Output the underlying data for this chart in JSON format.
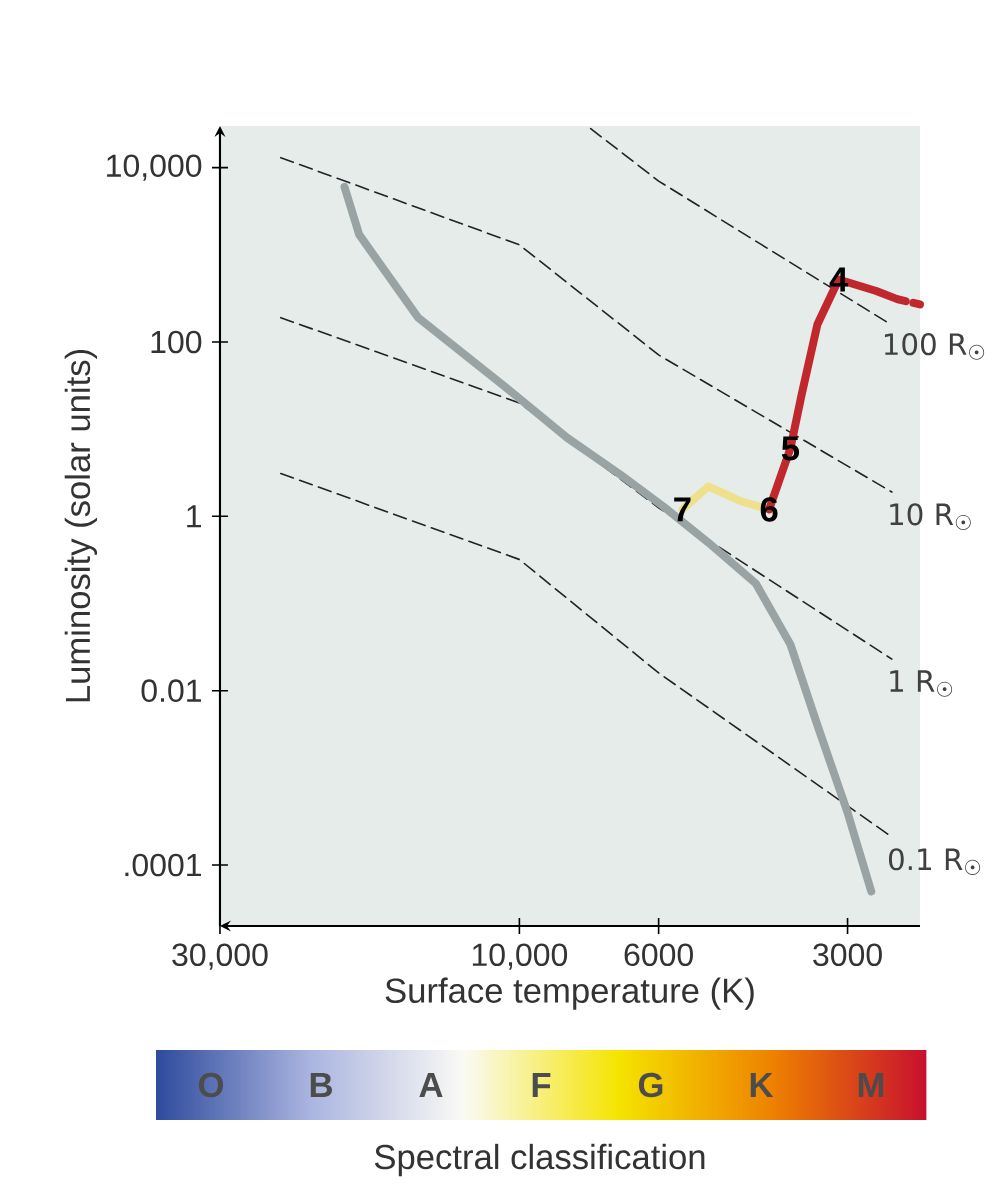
{
  "chart_data": {
    "type": "line",
    "xlabel": "Surface temperature (K)",
    "ylabel": "Luminosity (solar units)",
    "log": "xy",
    "xlim": [
      30000,
      2300
    ],
    "ylim": [
      2e-05,
      30000
    ],
    "xticks": [
      {
        "value": 30000,
        "label": "30,000"
      },
      {
        "value": 10000,
        "label": "10,000"
      },
      6000,
      3000
    ],
    "yticks": [
      {
        "value": 0.0001,
        "label": ".0001"
      },
      0.01,
      1,
      100,
      {
        "value": 10000,
        "label": "10,000"
      }
    ],
    "series": [
      {
        "name": "100 R$_{☉}$",
        "color": "#222222",
        "line_style": "dashed",
        "x": [
          7700,
          6000,
          2600
        ],
        "values": [
          28000,
          7000,
          170
        ]
      },
      {
        "name": "10 R$_{☉}$",
        "color": "#222222",
        "line_style": "dashed",
        "x": [
          24000,
          10000,
          6000,
          2550
        ],
        "values": [
          13000,
          1300,
          71,
          1.9
        ]
      },
      {
        "name": "1 R$_{☉}$",
        "color": "#222222",
        "line_style": "dashed",
        "x": [
          24000,
          10000,
          6000,
          2550
        ],
        "values": [
          190,
          20,
          1.25,
          0.023
        ]
      },
      {
        "name": "0.1 R$_{☉}$",
        "color": "#222222",
        "line_style": "dashed",
        "x": [
          24000,
          10000,
          6000,
          2550
        ],
        "values": [
          3.1,
          0.32,
          0.016,
          0.00021
        ]
      },
      {
        "color": "#9aa3a3",
        "line_style": "solid",
        "x": [
          19000,
          18000,
          14500,
          10500,
          8400,
          6900,
          5900,
          5000,
          4200,
          3700,
          3350,
          3000,
          2750
        ],
        "values": [
          6000,
          1700,
          190,
          30,
          8,
          3,
          1.3,
          0.5,
          0.17,
          0.034,
          0.004,
          0.0004,
          5e-05
        ]
      },
      {
        "color": "#efe08c",
        "line_style": "solid",
        "x": [
          4000,
          4450,
          5000,
          5500
        ],
        "values": [
          1.2,
          1.5,
          2.2,
          1.2
        ]
      },
      {
        "color": "#c0282d",
        "line_style": "solid",
        "x": [
          2500,
          2700,
          3100,
          3350,
          3550,
          3700,
          4000
        ],
        "values": [
          310,
          384,
          520,
          160,
          25,
          6,
          1.2
        ]
      },
      {
        "color": "#c0282d",
        "line_style": "dotted",
        "x": [
          2300,
          2500
        ],
        "values": [
          270,
          310
        ]
      }
    ],
    "annotations": [
      {
        "text": "4",
        "x": 3100,
        "y": 520
      },
      {
        "text": "5",
        "x": 3700,
        "y": 6
      },
      {
        "text": "6",
        "x": 4000,
        "y": 1.2
      },
      {
        "text": "7",
        "x": 5500,
        "y": 1.2
      },
      "O",
      "B",
      "A",
      "F",
      "G",
      "K",
      "M",
      "Spectral classification"
    ]
  }
}
